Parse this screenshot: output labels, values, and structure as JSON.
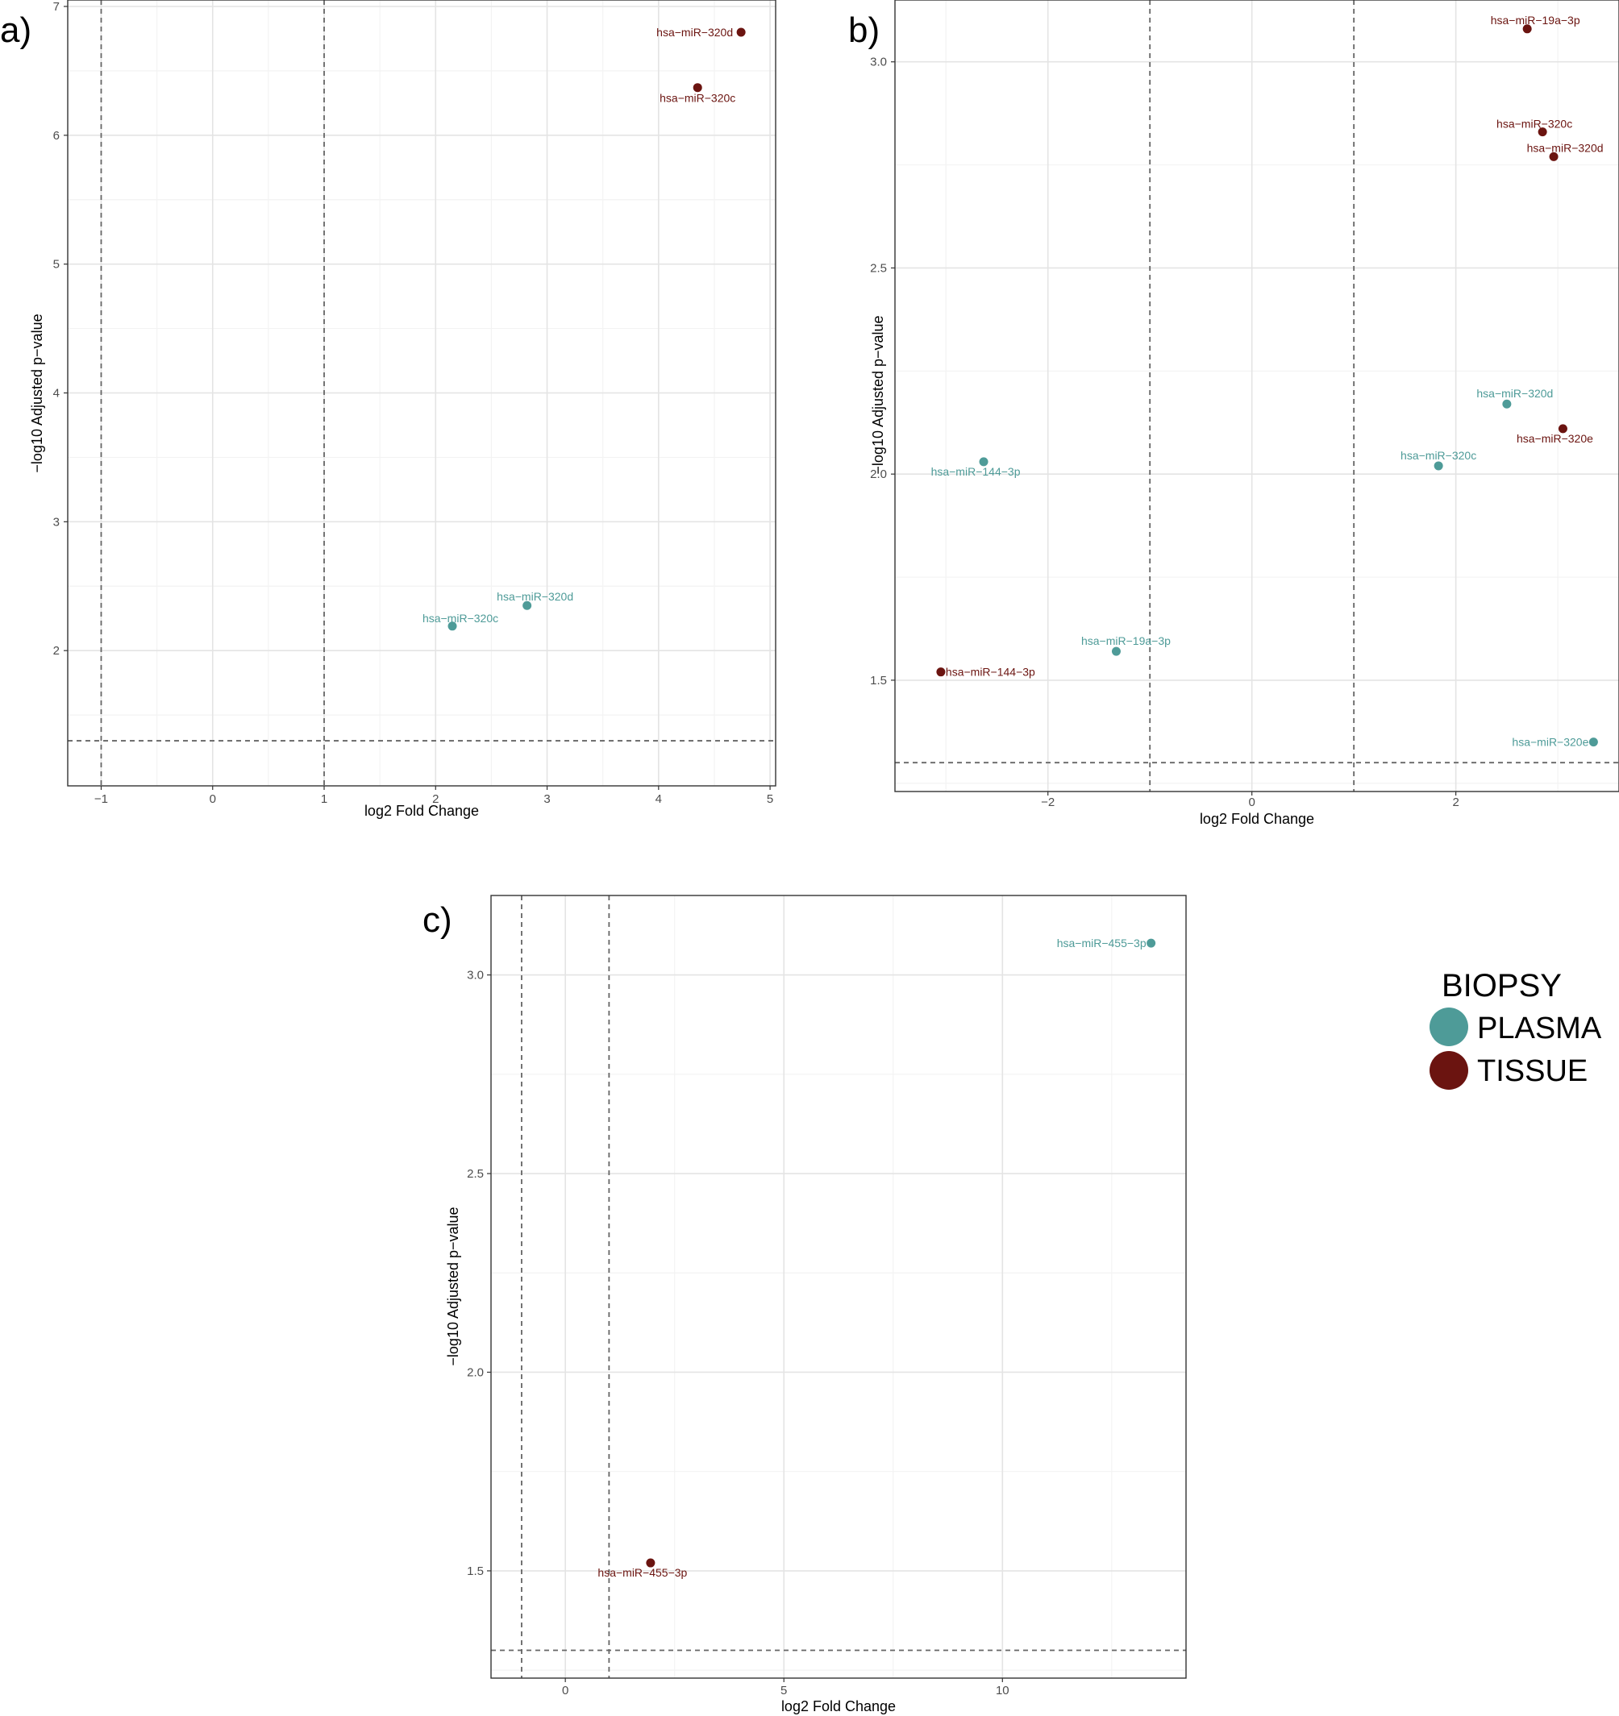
{
  "colors": {
    "plasma": "#4e9b98",
    "tissue": "#6b1410",
    "grid_major": "#e4e4e4",
    "grid_minor": "#f3f3f3",
    "frame": "#333333",
    "threshold": "#666666"
  },
  "legend": {
    "title": "BIOPSY",
    "items": [
      {
        "label": "PLASMA",
        "color": "#4e9b98"
      },
      {
        "label": "TISSUE",
        "color": "#6b1410"
      }
    ]
  },
  "chart_data": [
    {
      "type": "scatter",
      "panel": "a)",
      "xlabel": "log2 Fold Change",
      "ylabel": "−log10 Adjusted p−value",
      "xlim": [
        -1.3,
        5.05
      ],
      "ylim": [
        0.95,
        7.05
      ],
      "xticks": [
        -1,
        0,
        1,
        2,
        3,
        4,
        5
      ],
      "xtick_labels": [
        "−1",
        "0",
        "1",
        "2",
        "3",
        "4",
        "5"
      ],
      "yticks": [
        2,
        3,
        4,
        5,
        6,
        7
      ],
      "ytick_labels": [
        "2",
        "3",
        "4",
        "5",
        "6",
        "7"
      ],
      "vlines": [
        -1,
        1
      ],
      "hline": 1.3,
      "points": [
        {
          "label": "hsa−miR−320d",
          "x": 4.74,
          "y": 6.8,
          "group": "TISSUE",
          "label_dx": -10,
          "label_dy": 5,
          "anchor": "end"
        },
        {
          "label": "hsa−miR−320c",
          "x": 4.35,
          "y": 6.37,
          "group": "TISSUE",
          "label_dx": 0,
          "label_dy": 18,
          "anchor": "middle"
        },
        {
          "label": "hsa−miR−320d",
          "x": 2.82,
          "y": 2.35,
          "group": "PLASMA",
          "label_dx": 10,
          "label_dy": -6,
          "anchor": "middle"
        },
        {
          "label": "hsa−miR−320c",
          "x": 2.15,
          "y": 2.19,
          "group": "PLASMA",
          "label_dx": 10,
          "label_dy": -5,
          "anchor": "middle"
        }
      ]
    },
    {
      "type": "scatter",
      "panel": "b)",
      "xlabel": "log2 Fold Change",
      "ylabel": "−log10 Adjusted p−value",
      "xlim": [
        -3.5,
        3.6
      ],
      "ylim": [
        1.23,
        3.15
      ],
      "xticks": [
        -2,
        0,
        2
      ],
      "xtick_labels": [
        "−2",
        "0",
        "2"
      ],
      "yticks": [
        1.5,
        2.0,
        2.5,
        3.0
      ],
      "ytick_labels": [
        "1.5",
        "2.0",
        "2.5",
        "3.0"
      ],
      "vlines": [
        -1,
        1
      ],
      "hline": 1.3,
      "points": [
        {
          "label": "hsa−miR−19a−3p",
          "x": 2.7,
          "y": 3.08,
          "group": "TISSUE",
          "label_dx": 10,
          "label_dy": -6,
          "anchor": "middle"
        },
        {
          "label": "hsa−miR−320c",
          "x": 2.85,
          "y": 2.83,
          "group": "TISSUE",
          "label_dx": -10,
          "label_dy": -5,
          "anchor": "middle"
        },
        {
          "label": "hsa−miR−320d",
          "x": 2.96,
          "y": 2.77,
          "group": "TISSUE",
          "label_dx": 14,
          "label_dy": -6,
          "anchor": "middle"
        },
        {
          "label": "hsa−miR−320d",
          "x": 2.5,
          "y": 2.17,
          "group": "PLASMA",
          "label_dx": 10,
          "label_dy": -8,
          "anchor": "middle"
        },
        {
          "label": "hsa−miR−320e",
          "x": 3.05,
          "y": 2.11,
          "group": "TISSUE",
          "label_dx": -10,
          "label_dy": 17,
          "anchor": "middle"
        },
        {
          "label": "hsa−miR−144−3p",
          "x": -2.63,
          "y": 2.03,
          "group": "PLASMA",
          "label_dx": -10,
          "label_dy": 17,
          "anchor": "middle"
        },
        {
          "label": "hsa−miR−320c",
          "x": 1.83,
          "y": 2.02,
          "group": "PLASMA",
          "label_dx": 0,
          "label_dy": -8,
          "anchor": "middle"
        },
        {
          "label": "hsa−miR−19a−3p",
          "x": -1.33,
          "y": 1.57,
          "group": "PLASMA",
          "label_dx": 12,
          "label_dy": -8,
          "anchor": "middle"
        },
        {
          "label": "hsa−miR−144−3p",
          "x": -3.05,
          "y": 1.52,
          "group": "TISSUE",
          "label_dx": 6,
          "label_dy": 5,
          "anchor": "start"
        },
        {
          "label": "hsa−miR−320e",
          "x": 3.35,
          "y": 1.35,
          "group": "PLASMA",
          "label_dx": -6,
          "label_dy": 5,
          "anchor": "end"
        }
      ]
    },
    {
      "type": "scatter",
      "panel": "c)",
      "xlabel": "log2 Fold Change",
      "ylabel": "−log10 Adjusted p−value",
      "xlim": [
        -1.7,
        14.2
      ],
      "ylim": [
        1.23,
        3.2
      ],
      "xticks": [
        0,
        5,
        10
      ],
      "xtick_labels": [
        "0",
        "5",
        "10"
      ],
      "yticks": [
        1.5,
        2.0,
        2.5,
        3.0
      ],
      "ytick_labels": [
        "1.5",
        "2.0",
        "2.5",
        "3.0"
      ],
      "vlines": [
        -1,
        1
      ],
      "hline": 1.3,
      "points": [
        {
          "label": "hsa−miR−455−3p",
          "x": 13.4,
          "y": 3.08,
          "group": "PLASMA",
          "label_dx": -6,
          "label_dy": 5,
          "anchor": "end"
        },
        {
          "label": "hsa−miR−455−3p",
          "x": 1.95,
          "y": 1.52,
          "group": "TISSUE",
          "label_dx": -10,
          "label_dy": 17,
          "anchor": "middle"
        }
      ]
    }
  ]
}
